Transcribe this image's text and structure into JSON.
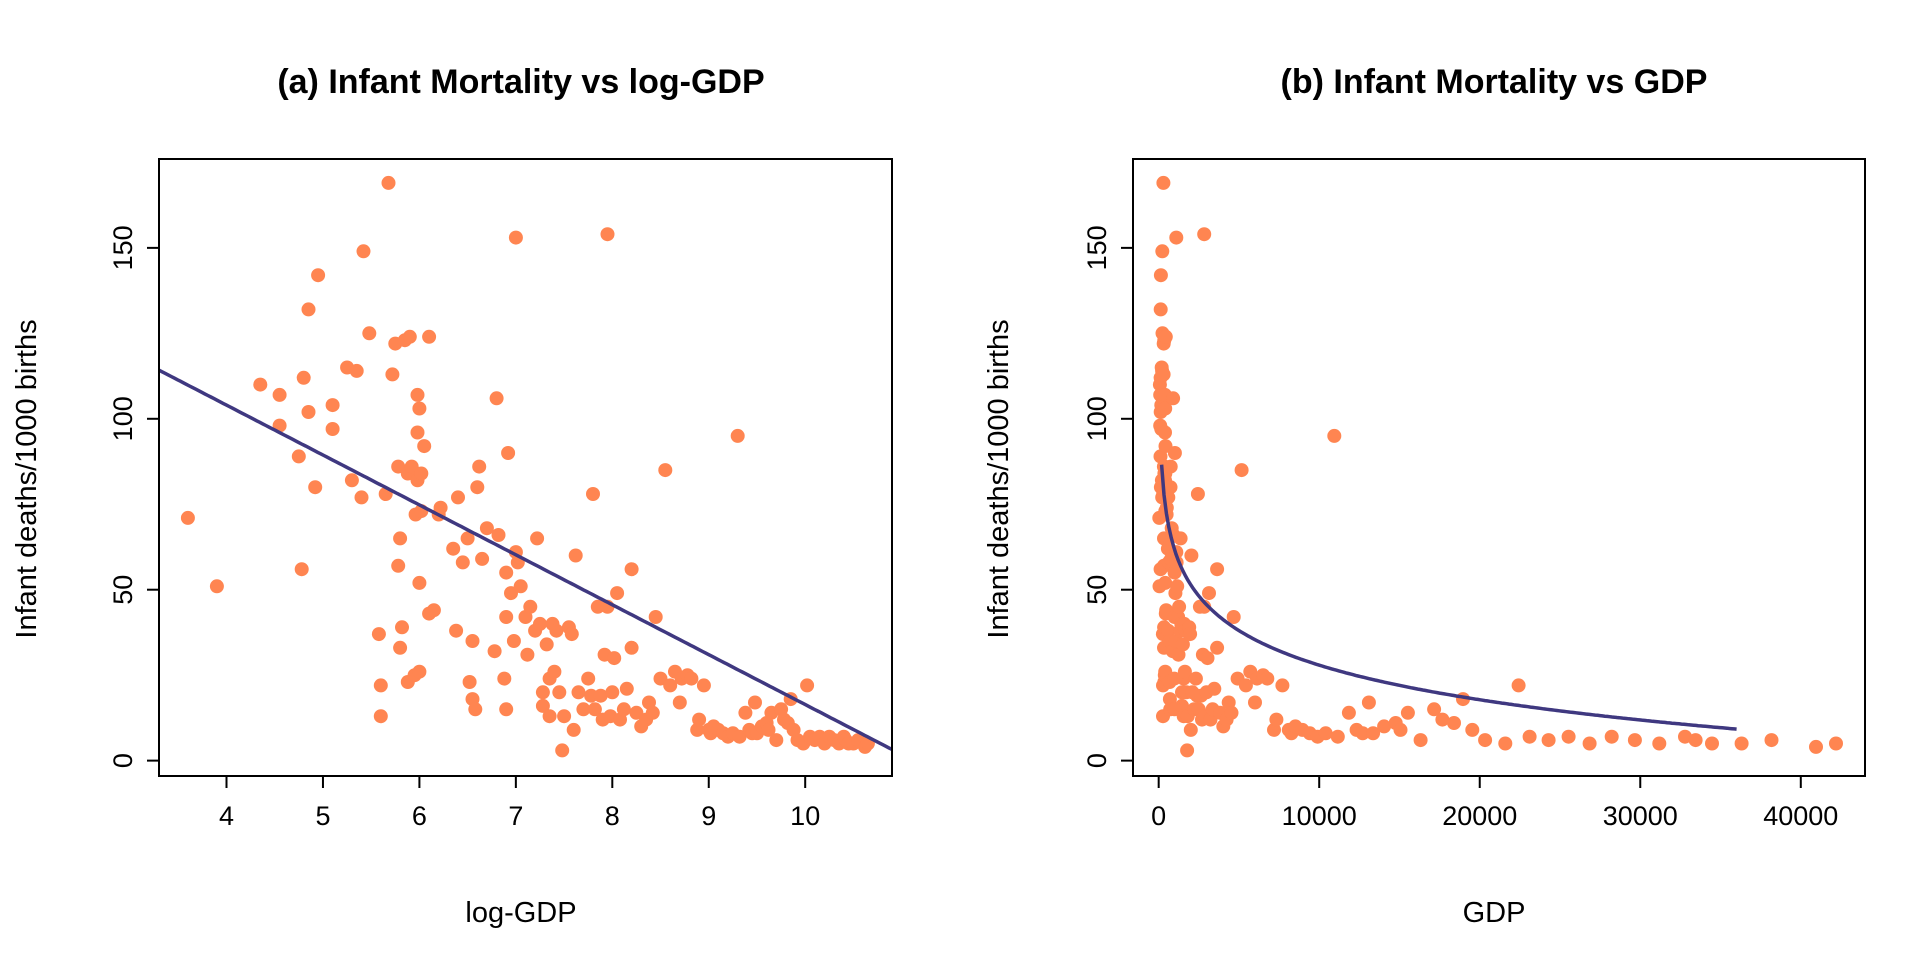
{
  "colors": {
    "points": "#FF8551",
    "fit_line": "#3F3880",
    "axes": "#000000"
  },
  "chart_data": [
    {
      "type": "scatter",
      "title": "(a) Infant Mortality vs log-GDP",
      "xlabel": "log-GDP",
      "ylabel": "Infant deaths/1000 births",
      "xlim": [
        3.3,
        10.9
      ],
      "ylim": [
        -4.5,
        176
      ],
      "xticks": [
        4,
        5,
        6,
        7,
        8,
        9,
        10
      ],
      "yticks": [
        0,
        50,
        100,
        150
      ],
      "grid": false,
      "fit": {
        "type": "linear",
        "intercept": 162.4,
        "slope": -14.6,
        "x_range": [
          3.3,
          10.9
        ]
      },
      "points": [
        [
          3.6,
          71
        ],
        [
          3.9,
          51
        ],
        [
          4.35,
          110
        ],
        [
          4.55,
          107
        ],
        [
          4.55,
          98
        ],
        [
          4.75,
          89
        ],
        [
          4.8,
          112
        ],
        [
          4.78,
          56
        ],
        [
          4.85,
          132
        ],
        [
          4.85,
          102
        ],
        [
          4.92,
          80
        ],
        [
          4.95,
          142
        ],
        [
          5.1,
          104
        ],
        [
          5.1,
          97
        ],
        [
          5.25,
          115
        ],
        [
          5.3,
          82
        ],
        [
          5.35,
          114
        ],
        [
          5.4,
          77
        ],
        [
          5.42,
          149
        ],
        [
          5.48,
          125
        ],
        [
          5.58,
          37
        ],
        [
          5.6,
          22
        ],
        [
          5.6,
          13
        ],
        [
          5.65,
          78
        ],
        [
          5.68,
          169
        ],
        [
          5.72,
          113
        ],
        [
          5.75,
          122
        ],
        [
          5.78,
          57
        ],
        [
          5.78,
          86
        ],
        [
          5.8,
          65
        ],
        [
          5.8,
          33
        ],
        [
          5.82,
          39
        ],
        [
          5.85,
          123
        ],
        [
          5.88,
          23
        ],
        [
          5.88,
          84
        ],
        [
          5.9,
          124
        ],
        [
          5.92,
          86
        ],
        [
          5.95,
          25
        ],
        [
          5.96,
          72
        ],
        [
          5.98,
          82
        ],
        [
          5.98,
          96
        ],
        [
          5.98,
          107
        ],
        [
          6.0,
          103
        ],
        [
          6.0,
          52
        ],
        [
          6.0,
          26
        ],
        [
          6.02,
          73
        ],
        [
          6.02,
          84
        ],
        [
          6.05,
          92
        ],
        [
          6.1,
          43
        ],
        [
          6.1,
          124
        ],
        [
          6.15,
          44
        ],
        [
          6.2,
          72
        ],
        [
          6.22,
          74
        ],
        [
          6.35,
          62
        ],
        [
          6.38,
          38
        ],
        [
          6.4,
          77
        ],
        [
          6.45,
          58
        ],
        [
          6.5,
          65
        ],
        [
          6.52,
          23
        ],
        [
          6.55,
          35
        ],
        [
          6.55,
          18
        ],
        [
          6.58,
          15
        ],
        [
          6.6,
          80
        ],
        [
          6.62,
          86
        ],
        [
          6.65,
          59
        ],
        [
          6.7,
          68
        ],
        [
          6.78,
          32
        ],
        [
          6.8,
          106
        ],
        [
          6.82,
          66
        ],
        [
          6.88,
          24
        ],
        [
          6.9,
          42
        ],
        [
          6.9,
          15
        ],
        [
          6.9,
          55
        ],
        [
          6.92,
          90
        ],
        [
          6.95,
          49
        ],
        [
          6.98,
          35
        ],
        [
          7.0,
          61
        ],
        [
          7.0,
          153
        ],
        [
          7.02,
          58
        ],
        [
          7.05,
          51
        ],
        [
          7.1,
          42
        ],
        [
          7.12,
          31
        ],
        [
          7.15,
          45
        ],
        [
          7.2,
          38
        ],
        [
          7.22,
          65
        ],
        [
          7.25,
          40
        ],
        [
          7.28,
          20
        ],
        [
          7.28,
          16
        ],
        [
          7.32,
          34
        ],
        [
          7.35,
          13
        ],
        [
          7.35,
          24
        ],
        [
          7.38,
          40
        ],
        [
          7.4,
          26
        ],
        [
          7.42,
          38
        ],
        [
          7.45,
          20
        ],
        [
          7.48,
          3
        ],
        [
          7.5,
          13
        ],
        [
          7.55,
          39
        ],
        [
          7.58,
          37
        ],
        [
          7.6,
          9
        ],
        [
          7.62,
          60
        ],
        [
          7.65,
          20
        ],
        [
          7.7,
          15
        ],
        [
          7.75,
          24
        ],
        [
          7.78,
          19
        ],
        [
          7.8,
          78
        ],
        [
          7.82,
          15
        ],
        [
          7.85,
          45
        ],
        [
          7.88,
          19
        ],
        [
          7.9,
          12
        ],
        [
          7.92,
          31
        ],
        [
          7.95,
          45
        ],
        [
          7.95,
          154
        ],
        [
          7.98,
          13
        ],
        [
          8.0,
          20
        ],
        [
          8.02,
          30
        ],
        [
          8.05,
          49
        ],
        [
          8.08,
          12
        ],
        [
          8.12,
          15
        ],
        [
          8.15,
          21
        ],
        [
          8.2,
          33
        ],
        [
          8.2,
          56
        ],
        [
          8.25,
          14
        ],
        [
          8.3,
          10
        ],
        [
          8.35,
          12
        ],
        [
          8.38,
          17
        ],
        [
          8.42,
          14
        ],
        [
          8.45,
          42
        ],
        [
          8.5,
          24
        ],
        [
          8.55,
          85
        ],
        [
          8.6,
          22
        ],
        [
          8.65,
          26
        ],
        [
          8.7,
          17
        ],
        [
          8.72,
          24
        ],
        [
          8.78,
          25
        ],
        [
          8.82,
          24
        ],
        [
          8.88,
          9
        ],
        [
          8.9,
          12
        ],
        [
          8.95,
          22
        ],
        [
          9.0,
          9
        ],
        [
          9.02,
          8
        ],
        [
          9.05,
          10
        ],
        [
          9.1,
          9
        ],
        [
          9.15,
          8
        ],
        [
          9.2,
          7
        ],
        [
          9.25,
          8
        ],
        [
          9.3,
          95
        ],
        [
          9.32,
          7
        ],
        [
          9.38,
          14
        ],
        [
          9.42,
          9
        ],
        [
          9.45,
          8
        ],
        [
          9.48,
          17
        ],
        [
          9.5,
          8
        ],
        [
          9.55,
          10
        ],
        [
          9.6,
          11
        ],
        [
          9.62,
          9
        ],
        [
          9.65,
          14
        ],
        [
          9.7,
          6
        ],
        [
          9.75,
          15
        ],
        [
          9.78,
          12
        ],
        [
          9.82,
          11
        ],
        [
          9.85,
          18
        ],
        [
          9.88,
          9
        ],
        [
          9.92,
          6
        ],
        [
          9.98,
          5
        ],
        [
          10.02,
          22
        ],
        [
          10.05,
          7
        ],
        [
          10.1,
          6
        ],
        [
          10.15,
          7
        ],
        [
          10.2,
          5
        ],
        [
          10.25,
          7
        ],
        [
          10.3,
          6
        ],
        [
          10.35,
          5
        ],
        [
          10.4,
          7
        ],
        [
          10.42,
          6
        ],
        [
          10.45,
          5
        ],
        [
          10.5,
          5
        ],
        [
          10.55,
          6
        ],
        [
          10.62,
          4
        ],
        [
          10.65,
          5
        ]
      ]
    },
    {
      "type": "scatter",
      "title": "(b) Infant Mortality vs GDP",
      "xlabel": "GDP",
      "ylabel": "Infant deaths/1000 births",
      "xlim": [
        -1600,
        44000
      ],
      "ylim": [
        -4.5,
        176
      ],
      "xticks": [
        0,
        10000,
        20000,
        30000,
        40000
      ],
      "yticks": [
        0,
        50,
        100,
        150
      ],
      "grid": false,
      "fit": {
        "type": "log-linear",
        "intercept": 162.4,
        "slope": -14.6,
        "x_range": [
          180,
          36000
        ]
      },
      "points": [
        [
          36,
          71
        ],
        [
          49,
          51
        ],
        [
          77,
          110
        ],
        [
          95,
          107
        ],
        [
          95,
          98
        ],
        [
          116,
          89
        ],
        [
          122,
          112
        ],
        [
          119,
          56
        ],
        [
          128,
          132
        ],
        [
          128,
          102
        ],
        [
          137,
          80
        ],
        [
          141,
          142
        ],
        [
          164,
          104
        ],
        [
          164,
          97
        ],
        [
          190,
          115
        ],
        [
          200,
          82
        ],
        [
          211,
          114
        ],
        [
          221,
          77
        ],
        [
          226,
          149
        ],
        [
          240,
          125
        ],
        [
          265,
          37
        ],
        [
          270,
          22
        ],
        [
          270,
          13
        ],
        [
          284,
          78
        ],
        [
          293,
          169
        ],
        [
          305,
          113
        ],
        [
          314,
          122
        ],
        [
          324,
          57
        ],
        [
          324,
          86
        ],
        [
          330,
          65
        ],
        [
          330,
          33
        ],
        [
          337,
          39
        ],
        [
          348,
          123
        ],
        [
          358,
          23
        ],
        [
          358,
          84
        ],
        [
          365,
          124
        ],
        [
          372,
          86
        ],
        [
          384,
          25
        ],
        [
          388,
          72
        ],
        [
          395,
          82
        ],
        [
          395,
          96
        ],
        [
          395,
          107
        ],
        [
          403,
          103
        ],
        [
          403,
          52
        ],
        [
          403,
          26
        ],
        [
          411,
          73
        ],
        [
          411,
          84
        ],
        [
          424,
          92
        ],
        [
          446,
          43
        ],
        [
          446,
          124
        ],
        [
          469,
          44
        ],
        [
          493,
          72
        ],
        [
          503,
          74
        ],
        [
          573,
          62
        ],
        [
          591,
          38
        ],
        [
          601,
          77
        ],
        [
          632,
          58
        ],
        [
          665,
          65
        ],
        [
          678,
          23
        ],
        [
          699,
          35
        ],
        [
          699,
          18
        ],
        [
          720,
          15
        ],
        [
          735,
          80
        ],
        [
          750,
          86
        ],
        [
          773,
          59
        ],
        [
          812,
          68
        ],
        [
          880,
          32
        ],
        [
          898,
          106
        ],
        [
          916,
          66
        ],
        [
          973,
          24
        ],
        [
          992,
          42
        ],
        [
          992,
          15
        ],
        [
          992,
          55
        ],
        [
          1012,
          90
        ],
        [
          1043,
          49
        ],
        [
          1075,
          35
        ],
        [
          1097,
          61
        ],
        [
          1097,
          153
        ],
        [
          1119,
          58
        ],
        [
          1153,
          51
        ],
        [
          1212,
          42
        ],
        [
          1237,
          31
        ],
        [
          1274,
          45
        ],
        [
          1339,
          38
        ],
        [
          1366,
          65
        ],
        [
          1408,
          40
        ],
        [
          1451,
          20
        ],
        [
          1451,
          16
        ],
        [
          1510,
          34
        ],
        [
          1556,
          13
        ],
        [
          1556,
          24
        ],
        [
          1588,
          40
        ],
        [
          1636,
          26
        ],
        [
          1669,
          38
        ],
        [
          1720,
          20
        ],
        [
          1772,
          3
        ],
        [
          1808,
          13
        ],
        [
          1901,
          39
        ],
        [
          1959,
          37
        ],
        [
          1998,
          9
        ],
        [
          2039,
          60
        ],
        [
          2101,
          20
        ],
        [
          2208,
          15
        ],
        [
          2321,
          24
        ],
        [
          2392,
          19
        ],
        [
          2440,
          78
        ],
        [
          2490,
          15
        ],
        [
          2566,
          45
        ],
        [
          2644,
          19
        ],
        [
          2697,
          12
        ],
        [
          2752,
          31
        ],
        [
          2836,
          45
        ],
        [
          2836,
          154
        ],
        [
          2922,
          13
        ],
        [
          2981,
          20
        ],
        [
          3041,
          30
        ],
        [
          3134,
          49
        ],
        [
          3229,
          12
        ],
        [
          3361,
          15
        ],
        [
          3463,
          21
        ],
        [
          3641,
          33
        ],
        [
          3641,
          56
        ],
        [
          3827,
          14
        ],
        [
          4024,
          10
        ],
        [
          4230,
          12
        ],
        [
          4359,
          17
        ],
        [
          4537,
          14
        ],
        [
          4675,
          42
        ],
        [
          4915,
          24
        ],
        [
          5166,
          85
        ],
        [
          5432,
          22
        ],
        [
          5710,
          26
        ],
        [
          6003,
          17
        ],
        [
          6124,
          24
        ],
        [
          6503,
          25
        ],
        [
          6768,
          24
        ],
        [
          7186,
          9
        ],
        [
          7331,
          12
        ],
        [
          7707,
          22
        ],
        [
          8103,
          9
        ],
        [
          8267,
          8
        ],
        [
          8518,
          10
        ],
        [
          8955,
          9
        ],
        [
          9414,
          8
        ],
        [
          9897,
          7
        ],
        [
          10405,
          8
        ],
        [
          10938,
          95
        ],
        [
          11159,
          7
        ],
        [
          11849,
          14
        ],
        [
          12332,
          9
        ],
        [
          12708,
          8
        ],
        [
          13094,
          17
        ],
        [
          13360,
          8
        ],
        [
          14044,
          10
        ],
        [
          14765,
          11
        ],
        [
          15063,
          9
        ],
        [
          15522,
          14
        ],
        [
          16318,
          6
        ],
        [
          17154,
          15
        ],
        [
          17676,
          12
        ],
        [
          18398,
          11
        ],
        [
          18958,
          18
        ],
        [
          19536,
          9
        ],
        [
          20333,
          6
        ],
        [
          21590,
          5
        ],
        [
          22421,
          22
        ],
        [
          23104,
          7
        ],
        [
          24288,
          6
        ],
        [
          25534,
          7
        ],
        [
          26843,
          5
        ],
        [
          28219,
          7
        ],
        [
          29666,
          6
        ],
        [
          31187,
          5
        ],
        [
          32786,
          7
        ],
        [
          33448,
          6
        ],
        [
          34471,
          5
        ],
        [
          36315,
          5
        ],
        [
          38177,
          6
        ],
        [
          40946,
          4
        ],
        [
          42192,
          5
        ]
      ]
    }
  ]
}
